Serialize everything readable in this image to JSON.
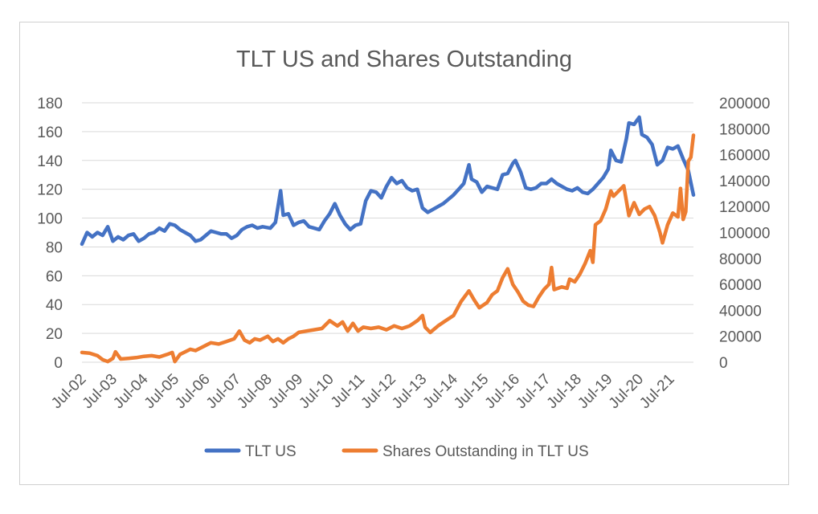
{
  "chart_data": {
    "type": "line",
    "title": "TLT US and Shares Outstanding",
    "x_tick_labels": [
      "Jul-02",
      "Jul-03",
      "Jul-04",
      "Jul-05",
      "Jul-06",
      "Jul-07",
      "Jul-08",
      "Jul-09",
      "Jul-10",
      "Jul-11",
      "Jul-12",
      "Jul-13",
      "Jul-14",
      "Jul-15",
      "Jul-16",
      "Jul-17",
      "Jul-18",
      "Jul-19",
      "Jul-20",
      "Jul-21"
    ],
    "x_range": [
      "Jul-02",
      "Apr-22"
    ],
    "y_left": {
      "range": [
        0,
        180
      ],
      "ticks": [
        "0",
        "20",
        "40",
        "60",
        "80",
        "100",
        "120",
        "140",
        "160",
        "180"
      ]
    },
    "y_right": {
      "range": [
        0,
        200000
      ],
      "ticks": [
        "0",
        "20000",
        "40000",
        "60000",
        "80000",
        "100000",
        "120000",
        "140000",
        "160000",
        "180000",
        "200000"
      ]
    },
    "gridlines": true,
    "legend_position": "bottom",
    "series": [
      {
        "name": "TLT US",
        "axis": "left",
        "color": "#4472C4",
        "points": [
          [
            "Jul-02",
            82
          ],
          [
            "Sep-02",
            90
          ],
          [
            "Nov-02",
            87
          ],
          [
            "Jan-03",
            90
          ],
          [
            "Mar-03",
            88
          ],
          [
            "May-03",
            94
          ],
          [
            "Jul-03",
            84
          ],
          [
            "Sep-03",
            87
          ],
          [
            "Nov-03",
            85
          ],
          [
            "Jan-04",
            88
          ],
          [
            "Mar-04",
            89
          ],
          [
            "May-04",
            84
          ],
          [
            "Jul-04",
            86
          ],
          [
            "Sep-04",
            89
          ],
          [
            "Nov-04",
            90
          ],
          [
            "Jan-05",
            93
          ],
          [
            "Mar-05",
            91
          ],
          [
            "May-05",
            96
          ],
          [
            "Jul-05",
            95
          ],
          [
            "Sep-05",
            92
          ],
          [
            "Nov-05",
            90
          ],
          [
            "Jan-06",
            88
          ],
          [
            "Mar-06",
            84
          ],
          [
            "May-06",
            85
          ],
          [
            "Jul-06",
            88
          ],
          [
            "Sep-06",
            91
          ],
          [
            "Nov-06",
            90
          ],
          [
            "Jan-07",
            89
          ],
          [
            "Mar-07",
            89
          ],
          [
            "May-07",
            86
          ],
          [
            "Jul-07",
            88
          ],
          [
            "Sep-07",
            92
          ],
          [
            "Nov-07",
            94
          ],
          [
            "Jan-08",
            95
          ],
          [
            "Mar-08",
            93
          ],
          [
            "May-08",
            94
          ],
          [
            "Aug-08",
            93
          ],
          [
            "Oct-08",
            97
          ],
          [
            "Dec-08",
            119
          ],
          [
            "Jan-09",
            102
          ],
          [
            "Mar-09",
            103
          ],
          [
            "May-09",
            95
          ],
          [
            "Jul-09",
            97
          ],
          [
            "Sep-09",
            98
          ],
          [
            "Nov-09",
            94
          ],
          [
            "Jan-10",
            93
          ],
          [
            "Mar-10",
            92
          ],
          [
            "May-10",
            98
          ],
          [
            "Jul-10",
            103
          ],
          [
            "Sep-10",
            110
          ],
          [
            "Nov-10",
            102
          ],
          [
            "Jan-11",
            96
          ],
          [
            "Mar-11",
            92
          ],
          [
            "May-11",
            95
          ],
          [
            "Jul-11",
            96
          ],
          [
            "Sep-11",
            112
          ],
          [
            "Nov-11",
            119
          ],
          [
            "Jan-12",
            118
          ],
          [
            "Mar-12",
            114
          ],
          [
            "May-12",
            122
          ],
          [
            "Jul-12",
            128
          ],
          [
            "Sep-12",
            124
          ],
          [
            "Nov-12",
            126
          ],
          [
            "Jan-13",
            121
          ],
          [
            "Mar-13",
            119
          ],
          [
            "May-13",
            120
          ],
          [
            "Jul-13",
            107
          ],
          [
            "Sep-13",
            104
          ],
          [
            "Nov-13",
            106
          ],
          [
            "Jan-14",
            108
          ],
          [
            "Mar-14",
            110
          ],
          [
            "May-14",
            113
          ],
          [
            "Jul-14",
            116
          ],
          [
            "Sep-14",
            120
          ],
          [
            "Nov-14",
            124
          ],
          [
            "Jan-15",
            137
          ],
          [
            "Feb-15",
            127
          ],
          [
            "Apr-15",
            125
          ],
          [
            "Jun-15",
            118
          ],
          [
            "Aug-15",
            122
          ],
          [
            "Oct-15",
            121
          ],
          [
            "Dec-15",
            120
          ],
          [
            "Feb-16",
            130
          ],
          [
            "Apr-16",
            131
          ],
          [
            "Jun-16",
            138
          ],
          [
            "Jul-16",
            140
          ],
          [
            "Sep-16",
            132
          ],
          [
            "Nov-16",
            121
          ],
          [
            "Jan-17",
            120
          ],
          [
            "Mar-17",
            121
          ],
          [
            "May-17",
            124
          ],
          [
            "Jul-17",
            124
          ],
          [
            "Sep-17",
            127
          ],
          [
            "Nov-17",
            124
          ],
          [
            "Jan-18",
            122
          ],
          [
            "Mar-18",
            120
          ],
          [
            "May-18",
            119
          ],
          [
            "Jul-18",
            121
          ],
          [
            "Sep-18",
            118
          ],
          [
            "Nov-18",
            117
          ],
          [
            "Jan-19",
            120
          ],
          [
            "Mar-19",
            124
          ],
          [
            "May-19",
            128
          ],
          [
            "Jul-19",
            134
          ],
          [
            "Aug-19",
            147
          ],
          [
            "Oct-19",
            140
          ],
          [
            "Dec-19",
            139
          ],
          [
            "Feb-20",
            155
          ],
          [
            "Mar-20",
            166
          ],
          [
            "May-20",
            165
          ],
          [
            "Jul-20",
            170
          ],
          [
            "Aug-20",
            158
          ],
          [
            "Oct-20",
            156
          ],
          [
            "Dec-20",
            151
          ],
          [
            "Feb-21",
            137
          ],
          [
            "Apr-21",
            140
          ],
          [
            "Jun-21",
            149
          ],
          [
            "Aug-21",
            148
          ],
          [
            "Oct-21",
            150
          ],
          [
            "Dec-21",
            141
          ],
          [
            "Feb-22",
            133
          ],
          [
            "Apr-22",
            116
          ]
        ]
      },
      {
        "name": "Shares Outstanding in TLT US",
        "axis": "right",
        "color": "#ED7D31",
        "points": [
          [
            "Jul-02",
            7500
          ],
          [
            "Oct-02",
            7000
          ],
          [
            "Jan-03",
            5000
          ],
          [
            "Mar-03",
            2000
          ],
          [
            "May-03",
            500
          ],
          [
            "Jul-03",
            3000
          ],
          [
            "Aug-03",
            8000
          ],
          [
            "Oct-03",
            2500
          ],
          [
            "Jan-04",
            3000
          ],
          [
            "Apr-04",
            3500
          ],
          [
            "Jul-04",
            4500
          ],
          [
            "Oct-04",
            5000
          ],
          [
            "Jan-05",
            4000
          ],
          [
            "Apr-05",
            6000
          ],
          [
            "Jun-05",
            7500
          ],
          [
            "Jul-05",
            500
          ],
          [
            "Sep-05",
            6000
          ],
          [
            "Nov-05",
            8000
          ],
          [
            "Jan-06",
            10000
          ],
          [
            "Mar-06",
            9000
          ],
          [
            "Jun-06",
            12000
          ],
          [
            "Sep-06",
            15000
          ],
          [
            "Dec-06",
            14000
          ],
          [
            "Mar-07",
            16000
          ],
          [
            "Jun-07",
            18000
          ],
          [
            "Aug-07",
            24000
          ],
          [
            "Oct-07",
            17000
          ],
          [
            "Dec-07",
            15000
          ],
          [
            "Feb-08",
            18000
          ],
          [
            "Apr-08",
            17000
          ],
          [
            "Jul-08",
            20000
          ],
          [
            "Sep-08",
            16000
          ],
          [
            "Nov-08",
            18000
          ],
          [
            "Jan-09",
            15000
          ],
          [
            "Mar-09",
            18000
          ],
          [
            "May-09",
            20000
          ],
          [
            "Jul-09",
            23000
          ],
          [
            "Oct-09",
            24000
          ],
          [
            "Jan-10",
            25000
          ],
          [
            "Apr-10",
            26000
          ],
          [
            "Jul-10",
            32000
          ],
          [
            "Oct-10",
            28000
          ],
          [
            "Dec-10",
            31000
          ],
          [
            "Feb-11",
            24000
          ],
          [
            "Apr-11",
            30000
          ],
          [
            "Jun-11",
            24000
          ],
          [
            "Aug-11",
            27000
          ],
          [
            "Nov-11",
            26000
          ],
          [
            "Feb-12",
            27000
          ],
          [
            "May-12",
            25000
          ],
          [
            "Aug-12",
            28000
          ],
          [
            "Nov-12",
            26000
          ],
          [
            "Feb-13",
            28000
          ],
          [
            "May-13",
            32000
          ],
          [
            "Jul-13",
            36000
          ],
          [
            "Aug-13",
            27000
          ],
          [
            "Oct-13",
            23000
          ],
          [
            "Jan-14",
            28000
          ],
          [
            "Apr-14",
            32000
          ],
          [
            "Jul-14",
            36000
          ],
          [
            "Oct-14",
            47000
          ],
          [
            "Jan-15",
            55000
          ],
          [
            "Mar-15",
            48000
          ],
          [
            "May-15",
            42000
          ],
          [
            "Aug-15",
            46000
          ],
          [
            "Oct-15",
            52000
          ],
          [
            "Dec-15",
            55000
          ],
          [
            "Feb-16",
            65000
          ],
          [
            "Apr-16",
            72000
          ],
          [
            "Jun-16",
            60000
          ],
          [
            "Aug-16",
            54000
          ],
          [
            "Oct-16",
            47000
          ],
          [
            "Dec-16",
            44000
          ],
          [
            "Feb-17",
            43000
          ],
          [
            "Apr-17",
            50000
          ],
          [
            "Jun-17",
            56000
          ],
          [
            "Aug-17",
            60000
          ],
          [
            "Sep-17",
            73000
          ],
          [
            "Oct-17",
            56000
          ],
          [
            "Jan-18",
            58000
          ],
          [
            "Mar-18",
            57000
          ],
          [
            "Apr-18",
            64000
          ],
          [
            "Jun-18",
            62000
          ],
          [
            "Aug-18",
            68000
          ],
          [
            "Oct-18",
            76000
          ],
          [
            "Dec-18",
            86000
          ],
          [
            "Jan-19",
            77000
          ],
          [
            "Feb-19",
            106000
          ],
          [
            "Apr-19",
            109000
          ],
          [
            "Jun-19",
            118000
          ],
          [
            "Aug-19",
            132000
          ],
          [
            "Sep-19",
            128000
          ],
          [
            "Nov-19",
            132000
          ],
          [
            "Jan-20",
            136000
          ],
          [
            "Mar-20",
            113000
          ],
          [
            "May-20",
            123000
          ],
          [
            "Jul-20",
            114000
          ],
          [
            "Sep-20",
            118000
          ],
          [
            "Nov-20",
            120000
          ],
          [
            "Jan-21",
            113000
          ],
          [
            "Mar-21",
            100000
          ],
          [
            "Apr-21",
            92000
          ],
          [
            "Jun-21",
            106000
          ],
          [
            "Aug-21",
            115000
          ],
          [
            "Oct-21",
            112000
          ],
          [
            "Nov-21",
            134000
          ],
          [
            "Dec-21",
            110000
          ],
          [
            "Jan-22",
            116000
          ],
          [
            "Feb-22",
            155000
          ],
          [
            "Mar-22",
            158000
          ],
          [
            "Apr-22",
            175000
          ]
        ]
      }
    ]
  }
}
